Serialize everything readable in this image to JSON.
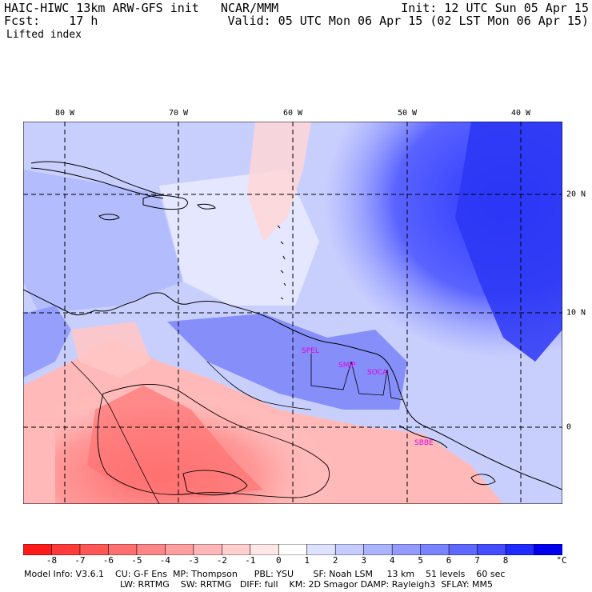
{
  "header": {
    "model_line": "HAIC-HIWC 13km ARW-GFS init   NCAR/MMM",
    "init_line": "Init: 12 UTC Sun 05 Apr 15",
    "fcst_line": "Fcst:    17 h",
    "valid_line": "Valid: 05 UTC Mon 06 Apr 15 (02 LST Mon 06 Apr 15)",
    "field_name": "Lifted index"
  },
  "map": {
    "lon_labels": [
      "80 W",
      "70 W",
      "60 W",
      "50 W",
      "40 W"
    ],
    "lat_labels": [
      "20 N",
      "10 N",
      "0"
    ],
    "stations": [
      "SPEL",
      "SMJP",
      "SOCA",
      "SBBE"
    ]
  },
  "colorbar": {
    "ticks": [
      "-8",
      "-7",
      "-6",
      "-5",
      "-4",
      "-3",
      "-2",
      "-1",
      "0",
      "1",
      "2",
      "3",
      "4",
      "5",
      "6",
      "7",
      "8"
    ],
    "unit": "°C",
    "colors": [
      "#ff1a1a",
      "#ff3a3a",
      "#ff5555",
      "#ff6f6f",
      "#ff8686",
      "#ff9e9e",
      "#ffb6b6",
      "#ffcfcf",
      "#ffe7e7",
      "#ffffff",
      "#dde2ff",
      "#c6ccff",
      "#adb4ff",
      "#939bff",
      "#7a82ff",
      "#5f68ff",
      "#444dff",
      "#1f2bff",
      "#0000ee"
    ]
  },
  "footer": {
    "line1": "Model Info: V3.6.1    CU: G-F Ens  MP: Thompson      PBL: YSU       SF: Noah LSM     13 km    51 levels    60 sec",
    "line2": "LW: RRTMG    SW: RRTMG   DIFF: full    KM: 2D Smagor DAMP: Rayleigh3  SFLAY: MM5"
  }
}
